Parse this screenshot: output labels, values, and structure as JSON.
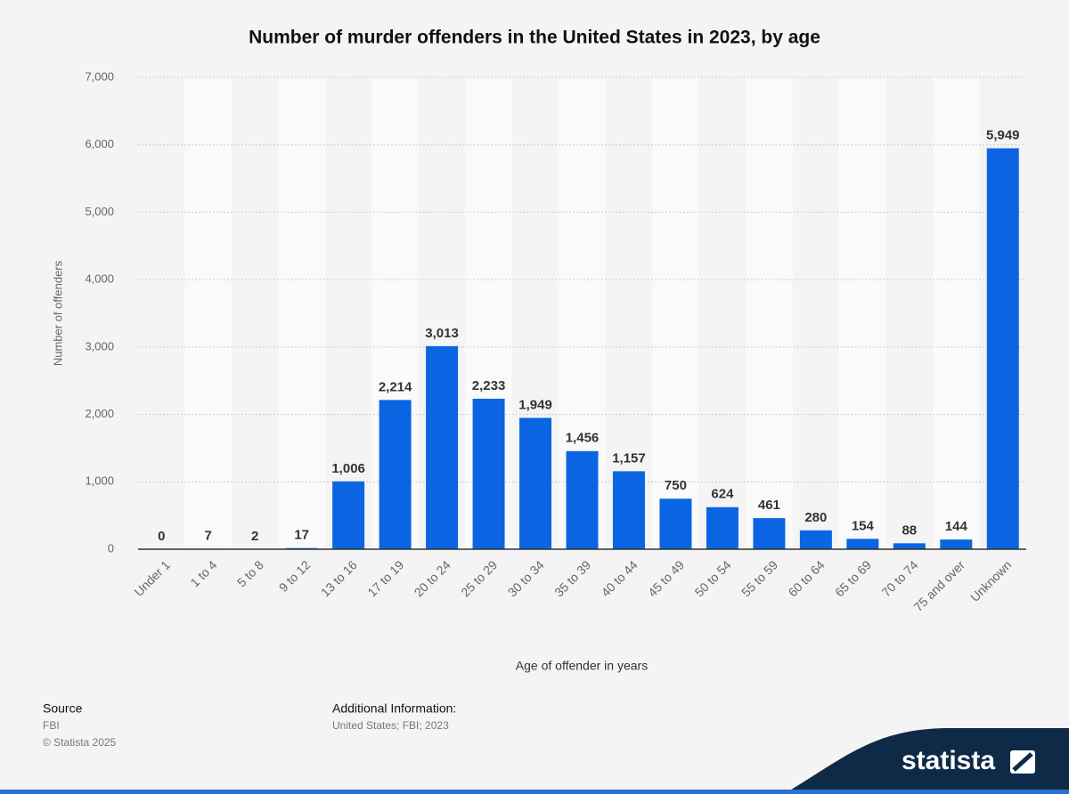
{
  "chart_data": {
    "type": "bar",
    "title": "Number of murder offenders in the United States in 2023, by age",
    "x_label": "Age of offender in years",
    "y_label": "Number of offenders",
    "categories": [
      "Under 1",
      "1 to 4",
      "5 to 8",
      "9 to 12",
      "13 to 16",
      "17 to 19",
      "20 to 24",
      "25 to 29",
      "30 to 34",
      "35 to 39",
      "40 to 44",
      "45 to 49",
      "50 to 54",
      "55 to 59",
      "60 to 64",
      "65 to 69",
      "70 to 74",
      "75 and over",
      "Unknown"
    ],
    "values": [
      0,
      7,
      2,
      17,
      1006,
      2214,
      3013,
      2233,
      1949,
      1456,
      1157,
      750,
      624,
      461,
      280,
      154,
      88,
      144,
      5949
    ],
    "value_labels": [
      "0",
      "7",
      "2",
      "17",
      "1,006",
      "2,214",
      "3,013",
      "2,233",
      "1,949",
      "1,456",
      "1,157",
      "750",
      "624",
      "461",
      "280",
      "154",
      "88",
      "144",
      "5,949"
    ],
    "color": "#0b65e3",
    "ylim": [
      0,
      7000
    ],
    "yticks": [
      0,
      {
        "value": 1000,
        "label": "1,000"
      },
      {
        "value": 2000,
        "label": "2,000"
      },
      {
        "value": 3000,
        "label": "3,000"
      },
      {
        "value": 4000,
        "label": "4,000"
      },
      {
        "value": 5000,
        "label": "5,000"
      },
      {
        "value": 6000,
        "label": "6,000"
      },
      {
        "value": 7000,
        "label": "7,000"
      }
    ],
    "grid": true
  },
  "footer": {
    "source_title": "Source",
    "source": "FBI",
    "copyright": "© Statista 2025",
    "info_title": "Additional Information:",
    "info": "United States; FBI; 2023",
    "logo": "statista"
  }
}
